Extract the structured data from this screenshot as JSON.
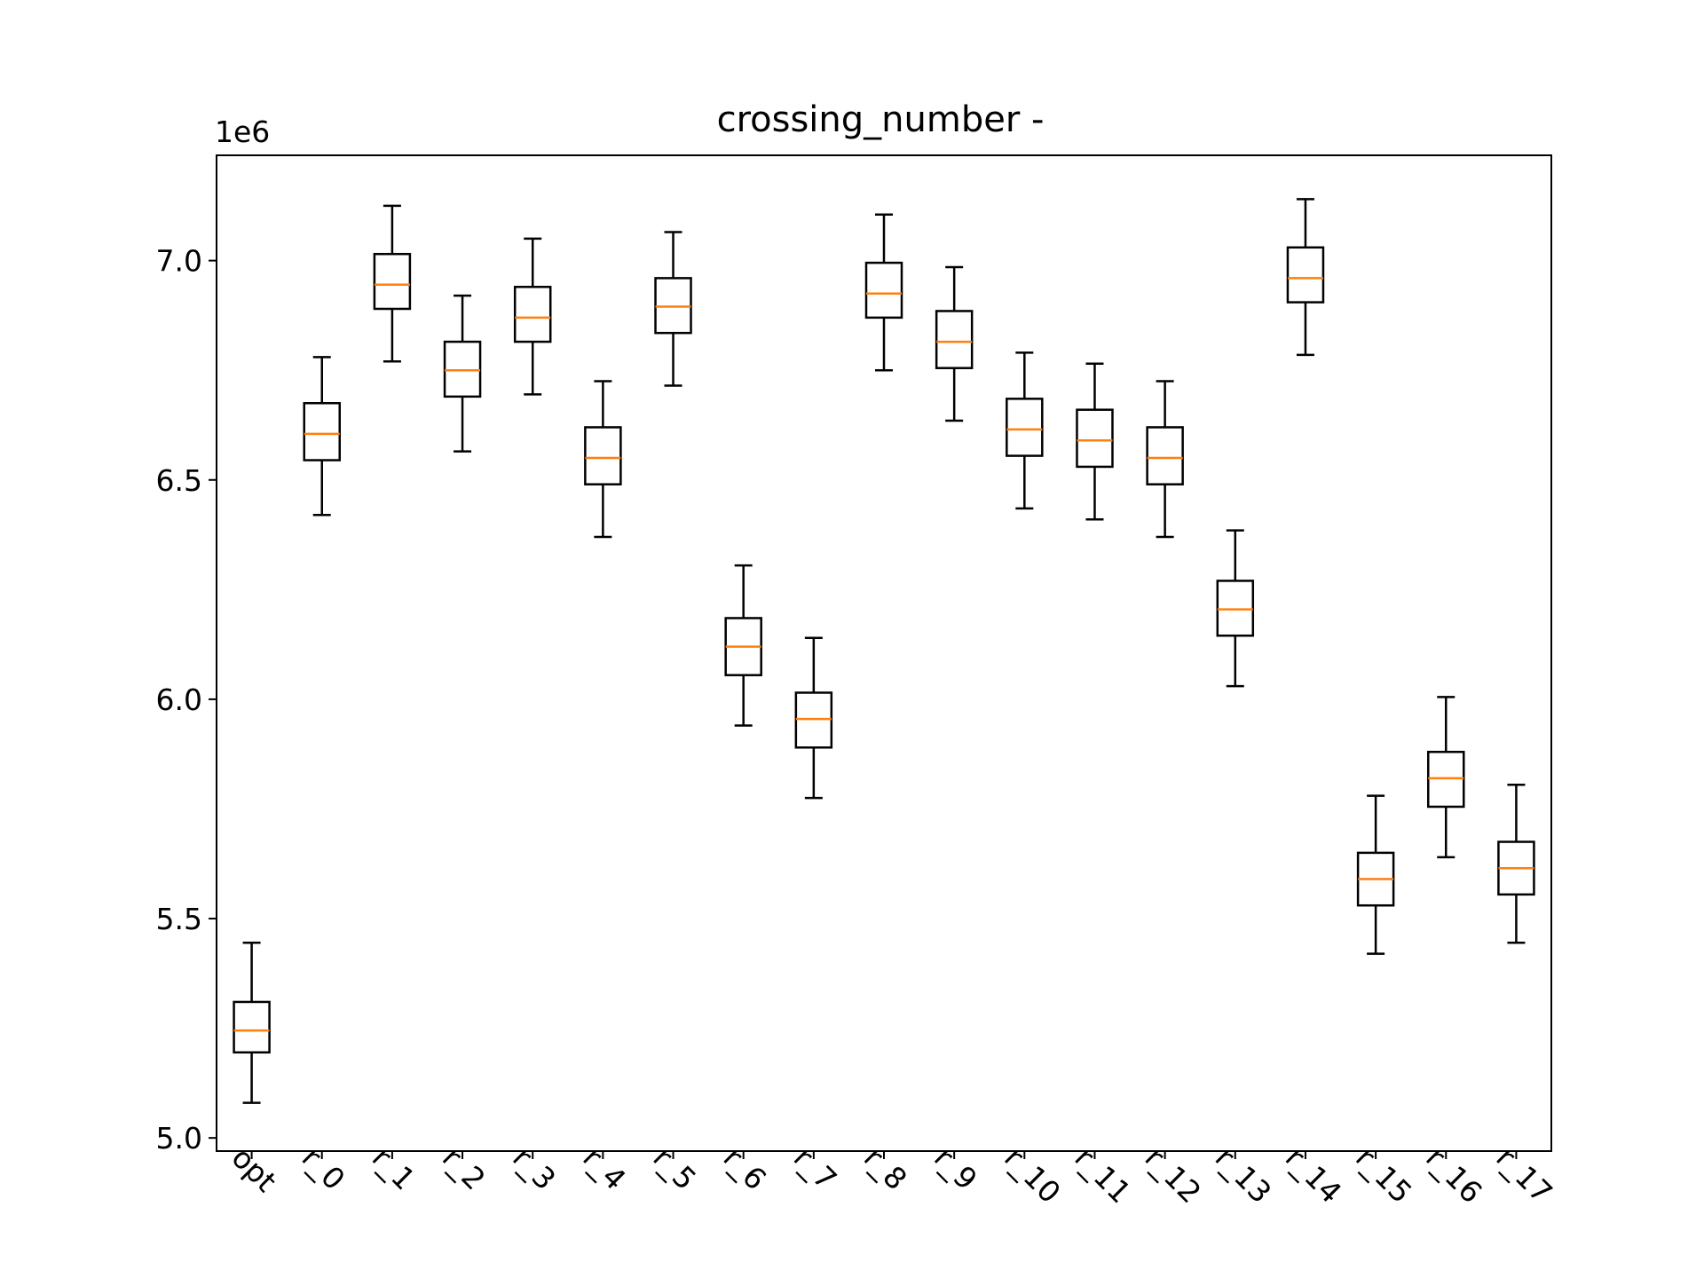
{
  "chart_data": {
    "type": "boxplot",
    "title": "crossing_number -",
    "y_offset_label": "1e6",
    "ylim": [
      4.97,
      7.24
    ],
    "yticks": [
      5.0,
      5.5,
      6.0,
      6.5,
      7.0
    ],
    "ytick_labels": [
      "5.0",
      "5.5",
      "6.0",
      "6.5",
      "7.0"
    ],
    "categories": [
      "opt",
      "r_0",
      "r_1",
      "r_2",
      "r_3",
      "r_4",
      "r_5",
      "r_6",
      "r_7",
      "r_8",
      "r_9",
      "r_10",
      "r_11",
      "r_12",
      "r_13",
      "r_14",
      "r_15",
      "r_16",
      "r_17"
    ],
    "boxes": [
      {
        "whislo": 5.08,
        "q1": 5.195,
        "med": 5.245,
        "q3": 5.31,
        "whishi": 5.445
      },
      {
        "whislo": 6.42,
        "q1": 6.545,
        "med": 6.605,
        "q3": 6.675,
        "whishi": 6.78
      },
      {
        "whislo": 6.77,
        "q1": 6.89,
        "med": 6.945,
        "q3": 7.015,
        "whishi": 7.125
      },
      {
        "whislo": 6.565,
        "q1": 6.69,
        "med": 6.75,
        "q3": 6.815,
        "whishi": 6.92
      },
      {
        "whislo": 6.695,
        "q1": 6.815,
        "med": 6.87,
        "q3": 6.94,
        "whishi": 7.05
      },
      {
        "whislo": 6.37,
        "q1": 6.49,
        "med": 6.55,
        "q3": 6.62,
        "whishi": 6.725
      },
      {
        "whislo": 6.715,
        "q1": 6.835,
        "med": 6.895,
        "q3": 6.96,
        "whishi": 7.065
      },
      {
        "whislo": 5.94,
        "q1": 6.055,
        "med": 6.12,
        "q3": 6.185,
        "whishi": 6.305
      },
      {
        "whislo": 5.775,
        "q1": 5.89,
        "med": 5.955,
        "q3": 6.015,
        "whishi": 6.14
      },
      {
        "whislo": 6.75,
        "q1": 6.87,
        "med": 6.925,
        "q3": 6.995,
        "whishi": 7.105
      },
      {
        "whislo": 6.635,
        "q1": 6.755,
        "med": 6.815,
        "q3": 6.885,
        "whishi": 6.985
      },
      {
        "whislo": 6.435,
        "q1": 6.555,
        "med": 6.615,
        "q3": 6.685,
        "whishi": 6.79
      },
      {
        "whislo": 6.41,
        "q1": 6.53,
        "med": 6.59,
        "q3": 6.66,
        "whishi": 6.765
      },
      {
        "whislo": 6.37,
        "q1": 6.49,
        "med": 6.55,
        "q3": 6.62,
        "whishi": 6.725
      },
      {
        "whislo": 6.03,
        "q1": 6.145,
        "med": 6.205,
        "q3": 6.27,
        "whishi": 6.385
      },
      {
        "whislo": 6.785,
        "q1": 6.905,
        "med": 6.96,
        "q3": 7.03,
        "whishi": 7.14
      },
      {
        "whislo": 5.42,
        "q1": 5.53,
        "med": 5.59,
        "q3": 5.65,
        "whishi": 5.78
      },
      {
        "whislo": 5.64,
        "q1": 5.755,
        "med": 5.82,
        "q3": 5.88,
        "whishi": 6.005
      },
      {
        "whislo": 5.445,
        "q1": 5.555,
        "med": 5.615,
        "q3": 5.675,
        "whishi": 5.805
      }
    ],
    "grid": false,
    "colors": {
      "box": "#000000",
      "median": "#ff7f0e"
    }
  }
}
